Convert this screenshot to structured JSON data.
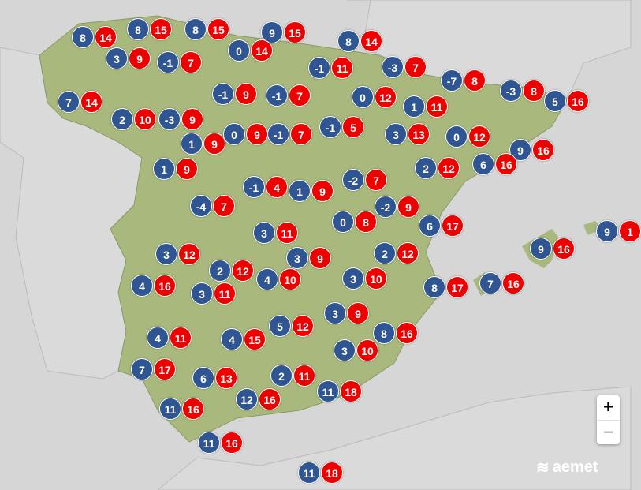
{
  "colors": {
    "min": "#2f5592",
    "max": "#ee0000",
    "land": "#a9b97d",
    "sea": "#d6d6d6"
  },
  "stations": [
    {
      "min": "8",
      "max": "14"
    },
    {
      "min": "8",
      "max": "15"
    },
    {
      "min": "8",
      "max": "15"
    },
    {
      "min": "9",
      "max": "15"
    },
    {
      "min": "8",
      "max": "14"
    },
    {
      "min": "3",
      "max": "9"
    },
    {
      "min": "-1",
      "max": "7"
    },
    {
      "min": "0",
      "max": "14"
    },
    {
      "min": "-1",
      "max": "11"
    },
    {
      "min": "-3",
      "max": "7"
    },
    {
      "min": "7",
      "max": "14"
    },
    {
      "min": "2",
      "max": "10"
    },
    {
      "min": "-3",
      "max": "9"
    },
    {
      "min": "-1",
      "max": "9"
    },
    {
      "min": "-1",
      "max": "7"
    },
    {
      "min": "0",
      "max": "12"
    },
    {
      "min": "-7",
      "max": "8"
    },
    {
      "min": "1",
      "max": "11"
    },
    {
      "min": "-3",
      "max": "8"
    },
    {
      "min": "5",
      "max": "16"
    },
    {
      "min": "0",
      "max": "9"
    },
    {
      "min": "-1",
      "max": "7"
    },
    {
      "min": "-1",
      "max": "5"
    },
    {
      "min": "3",
      "max": "13"
    },
    {
      "min": "0",
      "max": "12"
    },
    {
      "min": "1",
      "max": "9"
    },
    {
      "min": "9",
      "max": "16"
    },
    {
      "min": "1",
      "max": "9"
    },
    {
      "min": "2",
      "max": "12"
    },
    {
      "min": "6",
      "max": "16"
    },
    {
      "min": "-1",
      "max": "4"
    },
    {
      "min": "1",
      "max": "9"
    },
    {
      "min": "-2",
      "max": "7"
    },
    {
      "min": "-4",
      "max": "7"
    },
    {
      "min": "-2",
      "max": "9"
    },
    {
      "min": "0",
      "max": "8"
    },
    {
      "min": "6",
      "max": "17"
    },
    {
      "min": "3",
      "max": "11"
    },
    {
      "min": "9",
      "max": "1"
    },
    {
      "min": "3",
      "max": "12"
    },
    {
      "min": "2",
      "max": "12"
    },
    {
      "min": "9",
      "max": "16"
    },
    {
      "min": "3",
      "max": "9"
    },
    {
      "min": "2",
      "max": "12"
    },
    {
      "min": "4",
      "max": "10"
    },
    {
      "min": "3",
      "max": "10"
    },
    {
      "min": "4",
      "max": "16"
    },
    {
      "min": "8",
      "max": "17"
    },
    {
      "min": "7",
      "max": "16"
    },
    {
      "min": "3",
      "max": "11"
    },
    {
      "min": "3",
      "max": "9"
    },
    {
      "min": "5",
      "max": "12"
    },
    {
      "min": "8",
      "max": "16"
    },
    {
      "min": "4",
      "max": "11"
    },
    {
      "min": "4",
      "max": "15"
    },
    {
      "min": "3",
      "max": "10"
    },
    {
      "min": "7",
      "max": "17"
    },
    {
      "min": "2",
      "max": "11"
    },
    {
      "min": "6",
      "max": "13"
    },
    {
      "min": "11",
      "max": "18"
    },
    {
      "min": "12",
      "max": "16"
    },
    {
      "min": "11",
      "max": "16"
    },
    {
      "min": "11",
      "max": "16"
    },
    {
      "min": "11",
      "max": "18"
    }
  ],
  "controls": {
    "zoom_in": "+",
    "zoom_out": "−"
  },
  "logo": {
    "text": "aemet"
  }
}
